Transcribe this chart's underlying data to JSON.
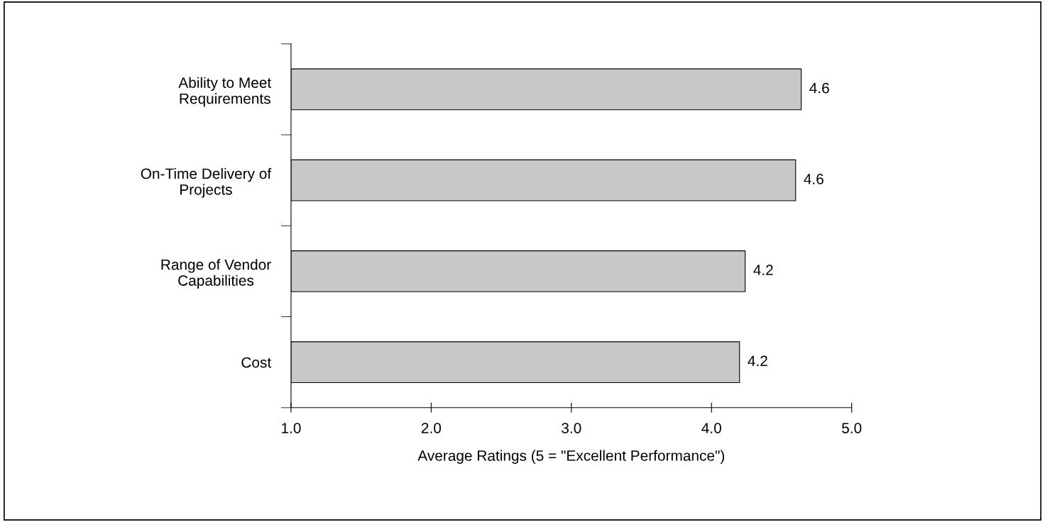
{
  "chart_data": {
    "type": "bar",
    "orientation": "horizontal",
    "categories": [
      "Ability to Meet\nRequirements",
      "On-Time Delivery of\nProjects",
      "Range of Vendor\nCapabilities",
      "Cost"
    ],
    "values": [
      4.64,
      4.6,
      4.24,
      4.2
    ],
    "value_labels": [
      "4.6",
      "4.6",
      "4.2",
      "4.2"
    ],
    "color": "#c8c8c8",
    "xlabel": "Average Ratings (5 = \"Excellent Performance\")",
    "xlim": [
      1.0,
      5.0
    ],
    "xticks": [
      {
        "value": 1.0,
        "label": "1.0"
      },
      {
        "value": 2.0,
        "label": "2.0"
      },
      {
        "value": 3.0,
        "label": "3.0"
      },
      {
        "value": 4.0,
        "label": "4.0"
      },
      {
        "value": 5.0,
        "label": "5.0"
      }
    ],
    "grid": false
  }
}
